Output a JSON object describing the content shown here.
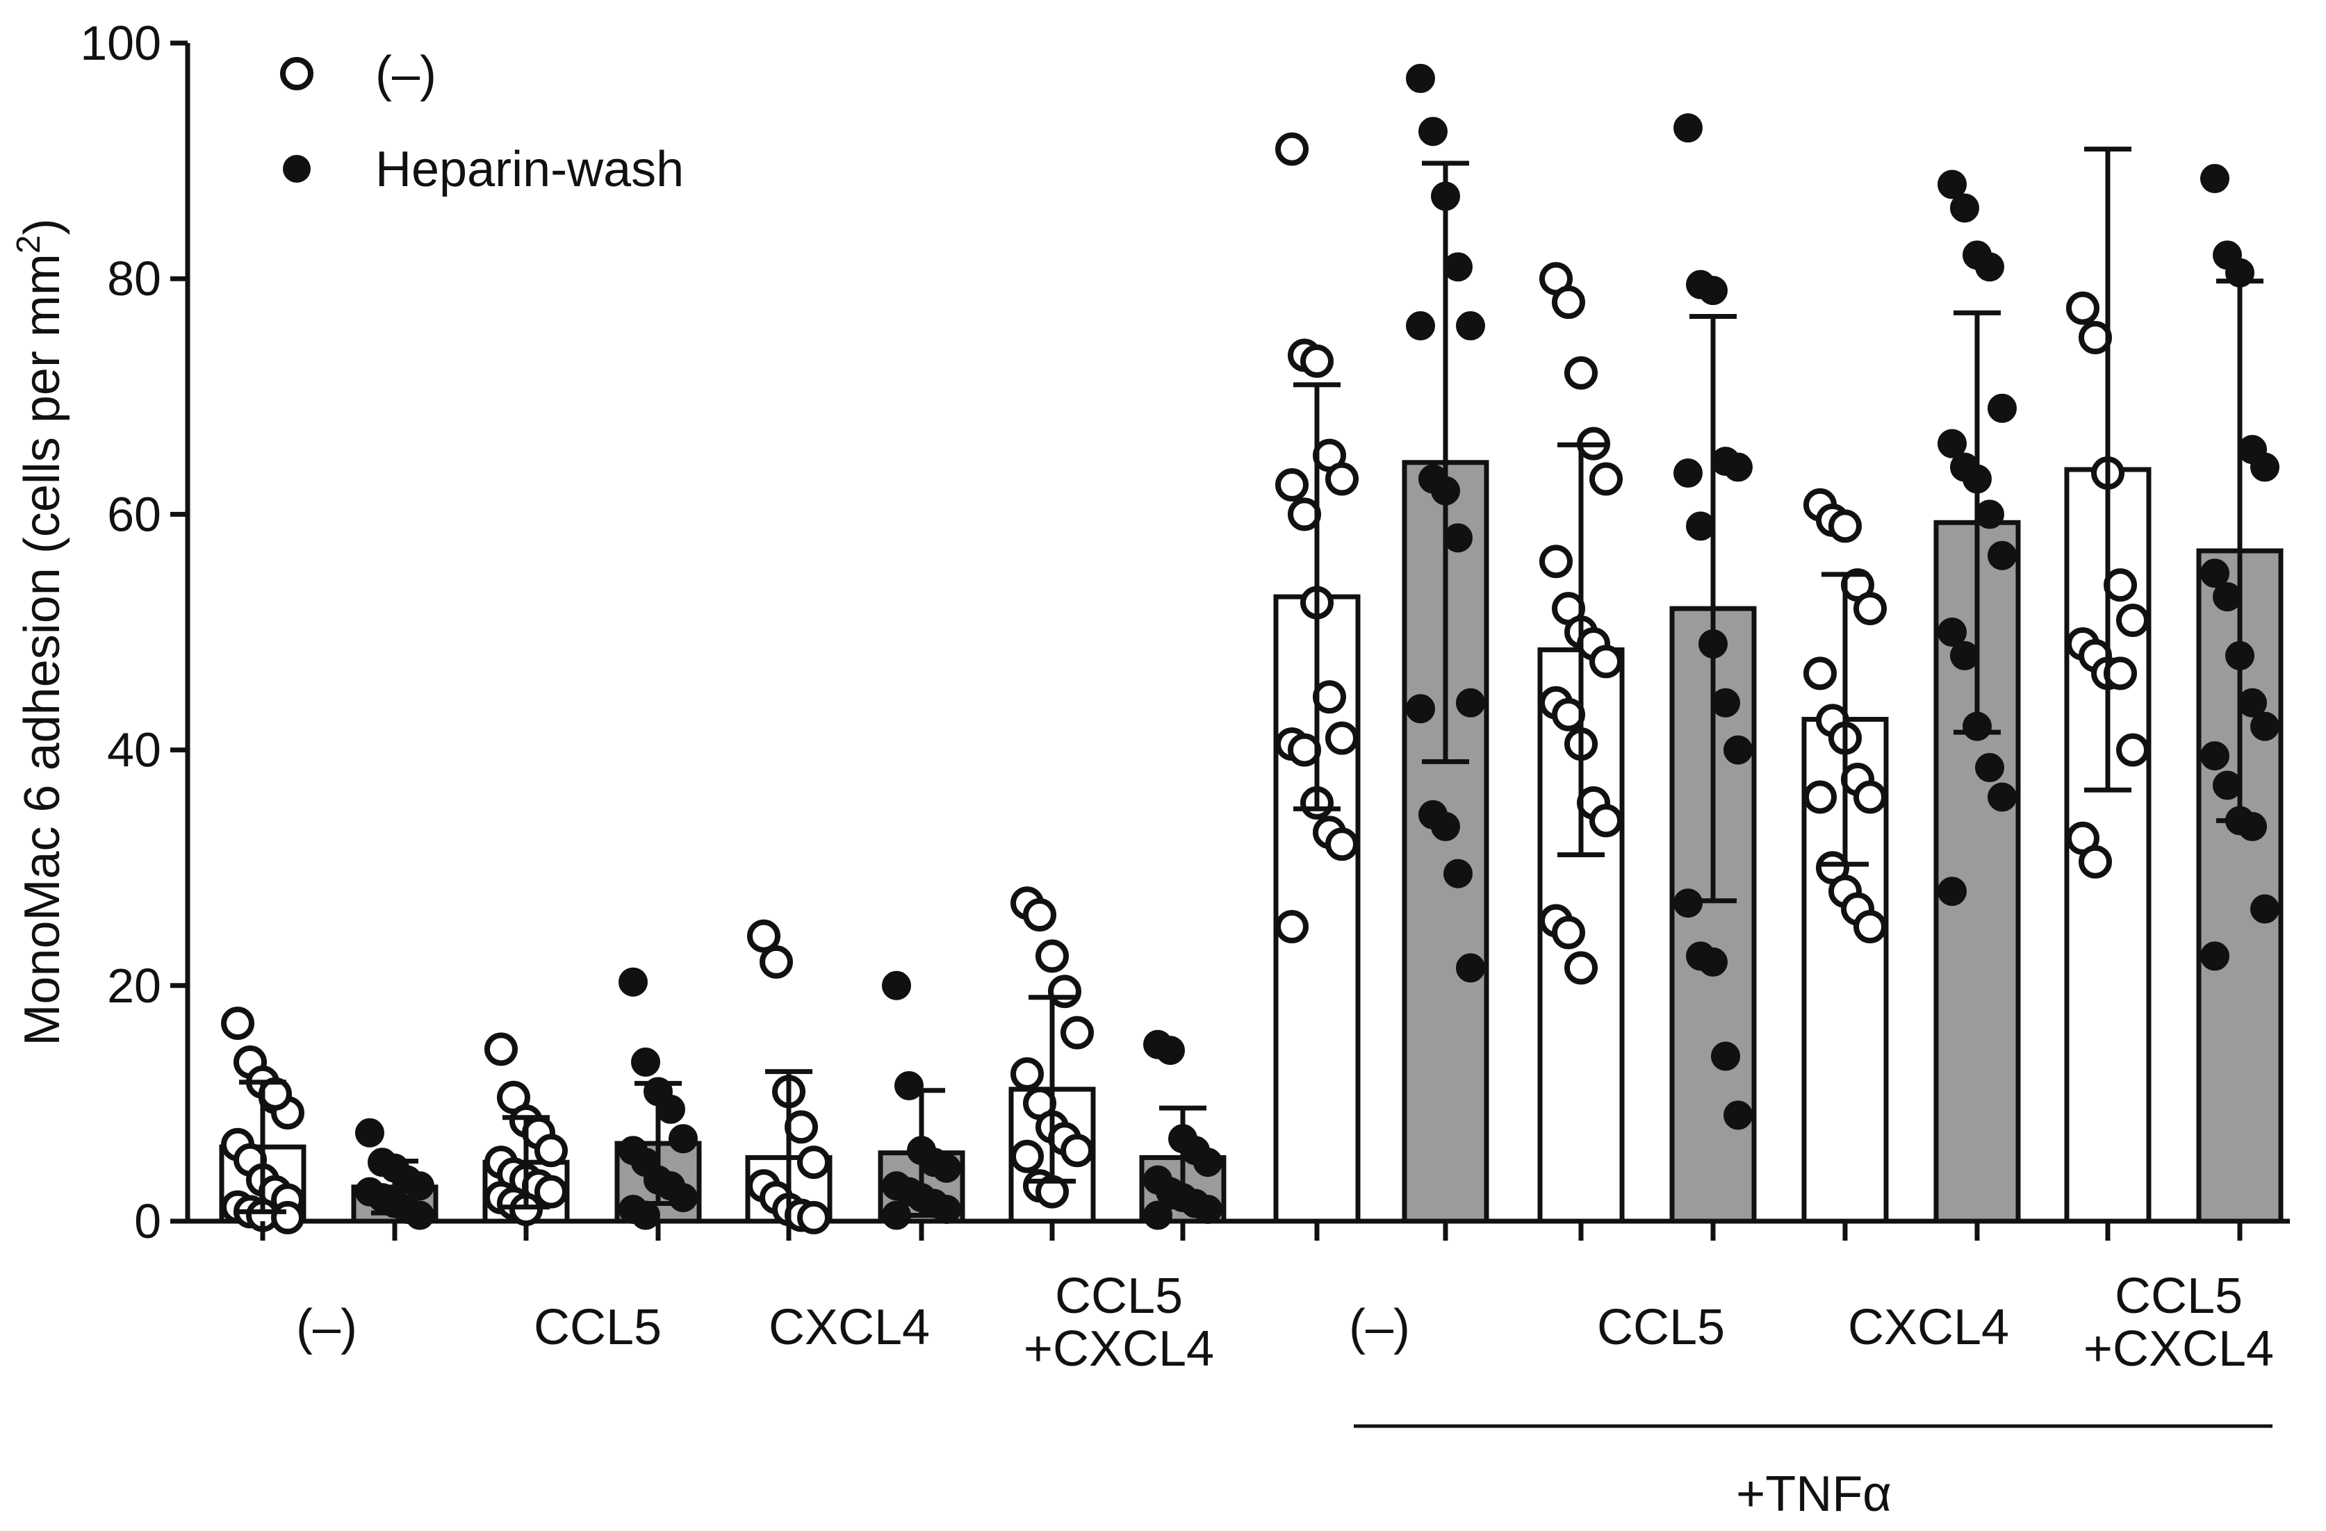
{
  "chart_data": {
    "type": "bar",
    "ylabel": "MonoMac 6 adhesion (cells per mm",
    "ylabel_sup": "2",
    "ylabel_close": ")",
    "ylim": [
      0,
      100
    ],
    "yticks": [
      "0",
      "20",
      "40",
      "60",
      "80",
      "100"
    ],
    "groups": [
      {
        "label_lines": [
          "(–)"
        ]
      },
      {
        "label_lines": [
          "CCL5"
        ]
      },
      {
        "label_lines": [
          "CXCL4"
        ]
      },
      {
        "label_lines": [
          "CCL5",
          "+CXCL4"
        ]
      },
      {
        "label_lines": [
          "(–)"
        ]
      },
      {
        "label_lines": [
          "CCL5"
        ]
      },
      {
        "label_lines": [
          "CXCL4"
        ]
      },
      {
        "label_lines": [
          "CCL5",
          "+CXCL4"
        ]
      }
    ],
    "bracket_label": "+TNFα",
    "bar_colors": {
      "open": "#ffffff",
      "filled": "#9b9b9b"
    },
    "series": [
      {
        "name": "(–)",
        "marker": "open",
        "means": [
          6.3,
          5.0,
          5.4,
          11.2,
          53.0,
          48.5,
          42.6,
          63.8
        ],
        "sd": [
          5.5,
          3.8,
          7.3,
          7.8,
          18.0,
          17.4,
          12.3,
          27.2
        ],
        "points": [
          [
            16.8,
            13.5,
            11.8,
            10.5,
            9.2,
            6.5,
            5.2,
            3.5,
            2.5,
            1.8,
            1.2,
            0.8,
            0.5,
            10.8,
            0.3
          ],
          [
            14.6,
            10.5,
            8.5,
            7.5,
            6.0,
            5.0,
            4.0,
            3.5,
            3.0,
            2.5,
            2.0,
            1.5,
            1.0
          ],
          [
            24.2,
            22.0,
            11.0,
            8.0,
            5.0,
            3.0,
            2.0,
            1.0,
            0.5,
            0.3
          ],
          [
            27.0,
            26.0,
            22.5,
            19.5,
            16.0,
            12.5,
            10.0,
            8.0,
            7.0,
            6.0,
            5.5,
            3.0,
            2.5
          ],
          [
            91.0,
            73.5,
            73.0,
            65.0,
            63.0,
            62.5,
            60.0,
            52.5,
            44.5,
            41.0,
            40.5,
            40.0,
            35.5,
            33.0,
            32.0,
            25.0
          ],
          [
            80.0,
            78.0,
            72.0,
            66.0,
            63.0,
            56.0,
            52.0,
            50.0,
            49.0,
            47.5,
            44.0,
            43.0,
            40.5,
            35.5,
            34.0,
            25.5,
            24.5,
            21.5
          ],
          [
            60.8,
            59.5,
            59.0,
            54.0,
            52.0,
            46.5,
            42.5,
            41.0,
            37.5,
            36.0,
            36.0,
            30.0,
            28.0,
            26.5,
            25.0
          ],
          [
            77.5,
            75.0,
            63.5,
            54.0,
            51.0,
            49.0,
            48.0,
            46.5,
            46.5,
            40.0,
            32.5,
            30.5
          ]
        ]
      },
      {
        "name": "Heparin-wash",
        "marker": "filled",
        "means": [
          2.9,
          6.6,
          5.8,
          5.4,
          64.4,
          52.0,
          59.3,
          56.9
        ],
        "sd": [
          2.2,
          5.1,
          5.3,
          4.2,
          25.4,
          24.8,
          17.8,
          22.9
        ],
        "points": [
          [
            7.5,
            5.0,
            4.5,
            3.5,
            3.0,
            2.5,
            2.0,
            1.5,
            1.0,
            0.5
          ],
          [
            20.3,
            13.5,
            11.0,
            9.5,
            7.0,
            6.0,
            5.0,
            3.5,
            3.0,
            2.0,
            1.0,
            0.5
          ],
          [
            20.0,
            11.5,
            6.0,
            5.0,
            4.5,
            3.0,
            2.5,
            2.0,
            1.5,
            1.0,
            0.5
          ],
          [
            15.0,
            14.5,
            7.0,
            6.0,
            5.0,
            3.5,
            2.5,
            2.0,
            1.5,
            1.0,
            0.5
          ],
          [
            97.0,
            92.5,
            87.0,
            81.0,
            76.0,
            76.0,
            63.0,
            62.0,
            58.0,
            44.0,
            43.5,
            34.5,
            33.5,
            29.5,
            21.5
          ],
          [
            92.8,
            79.5,
            79.0,
            64.5,
            64.0,
            63.5,
            59.0,
            49.0,
            44.0,
            40.0,
            27.0,
            22.5,
            22.0,
            14.0,
            9.0
          ],
          [
            88.0,
            86.0,
            82.0,
            81.0,
            69.0,
            66.0,
            64.0,
            63.0,
            60.0,
            56.5,
            50.0,
            48.0,
            42.0,
            38.5,
            36.0,
            28.0
          ],
          [
            88.5,
            82.0,
            80.5,
            65.5,
            64.0,
            55.0,
            53.0,
            48.0,
            44.0,
            42.0,
            39.5,
            37.0,
            34.0,
            33.5,
            26.5,
            22.5
          ]
        ]
      }
    ],
    "legend": [
      {
        "marker": "open",
        "label": "(–)"
      },
      {
        "marker": "filled",
        "label": "Heparin-wash"
      }
    ],
    "legend_position": "top-left"
  }
}
